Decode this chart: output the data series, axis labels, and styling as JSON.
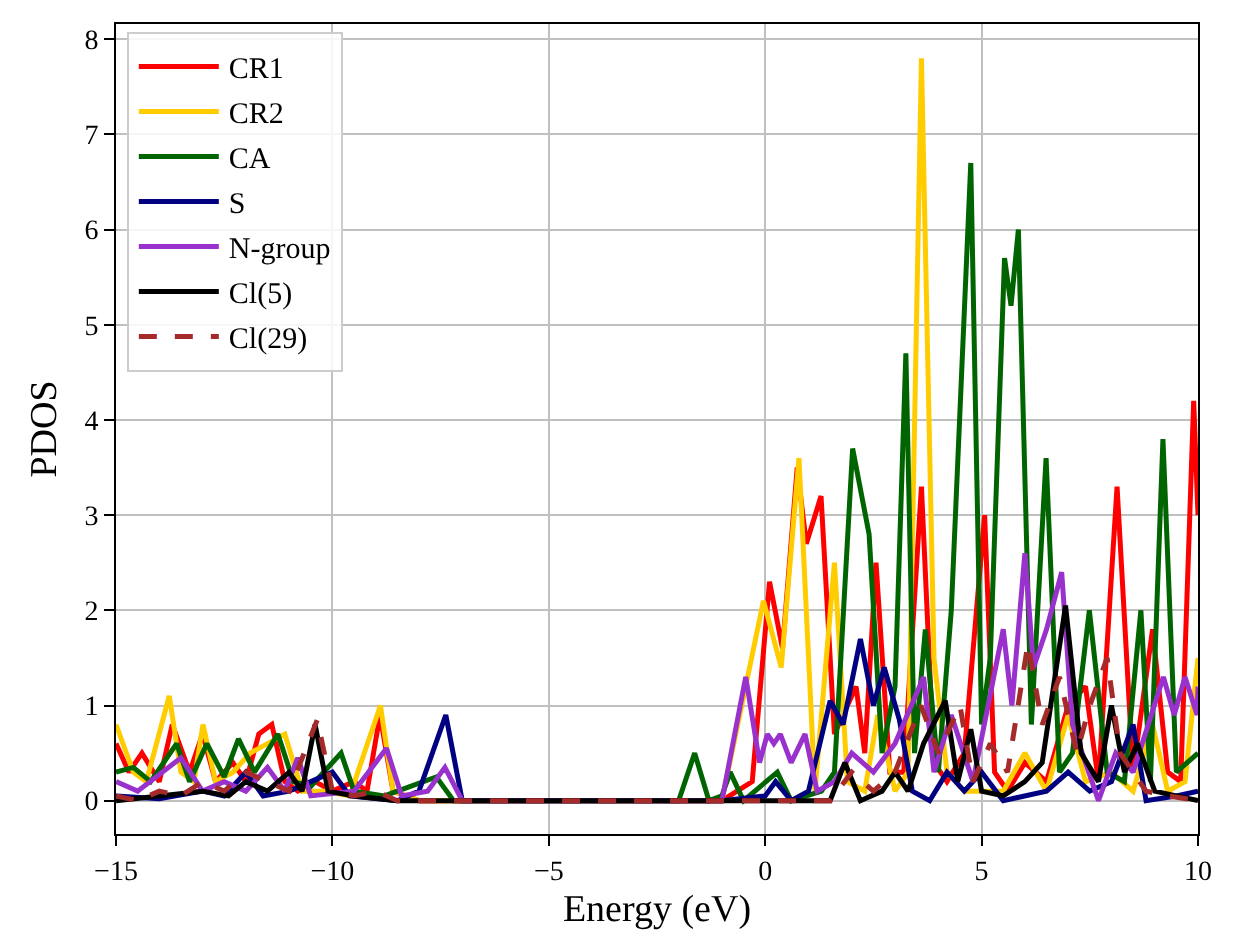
{
  "chart_data": {
    "type": "line",
    "xlabel": "Energy (eV)",
    "ylabel": "PDOS",
    "xlim": [
      -15,
      10
    ],
    "xticks": [
      {
        "value": -15,
        "label": "−15"
      },
      {
        "value": -10,
        "label": "−10"
      },
      {
        "value": -5,
        "label": "−5"
      },
      0,
      5,
      10
    ],
    "ylim": [
      -0.35,
      8.16
    ],
    "yticks": [
      0,
      1,
      2,
      3,
      4,
      5,
      6,
      7,
      8
    ],
    "grid": true,
    "legend": "top left",
    "marker": "none",
    "series": [
      {
        "name": "CR1",
        "color": "#ff0000",
        "x": [
          -15,
          -14.7,
          -14.4,
          -14,
          -13.7,
          -13.3,
          -13,
          -12.7,
          -12.3,
          -12,
          -11.7,
          -11.4,
          -11.1,
          -10.8,
          -10.4,
          -10,
          -9.5,
          -9.2,
          -8.9,
          -8.6,
          -8,
          -1,
          -0.3,
          0.1,
          0.4,
          0.74,
          0.95,
          1.29,
          1.6,
          2.1,
          2.3,
          2.56,
          2.88,
          3.2,
          3.61,
          3.9,
          4.2,
          4.6,
          5.07,
          5.3,
          5.6,
          6,
          6.5,
          7,
          7.4,
          7.7,
          8.13,
          8.5,
          8.95,
          9.3,
          9.6,
          9.9,
          10
        ],
        "values": [
          0.6,
          0.3,
          0.5,
          0.2,
          0.8,
          0.3,
          0.7,
          0.2,
          0.4,
          0.2,
          0.7,
          0.8,
          0.2,
          0.1,
          0.2,
          0.1,
          0.2,
          0.1,
          0.9,
          0.1,
          0,
          0,
          0.2,
          2.3,
          1.6,
          3.5,
          2.7,
          3.2,
          0.7,
          1.2,
          0.5,
          2.5,
          0.3,
          0.3,
          3.3,
          0.4,
          0.2,
          0.5,
          3.0,
          0.3,
          0.1,
          0.4,
          0.2,
          1.0,
          1.2,
          0.2,
          3.3,
          0.3,
          1.8,
          0.3,
          0.2,
          4.2,
          3.0
        ]
      },
      {
        "name": "CR2",
        "color": "#ffcc00",
        "x": [
          -15,
          -14.6,
          -14.3,
          -13.77,
          -13.5,
          -13.2,
          -12.99,
          -12.7,
          -12.3,
          -11.9,
          -11.5,
          -11.1,
          -10.7,
          -10.2,
          -9.6,
          -8.89,
          -8.6,
          -8,
          -1,
          -0.04,
          0.37,
          0.78,
          1.15,
          1.6,
          1.9,
          2.3,
          2.6,
          3,
          3.3,
          3.61,
          3.9,
          4.2,
          4.6,
          5.5,
          6,
          6.5,
          7,
          7.4,
          8,
          8.5,
          8.95,
          9.3,
          9.7,
          10
        ],
        "values": [
          0.8,
          0.3,
          0.2,
          1.1,
          0.3,
          0.2,
          0.8,
          0.2,
          0.3,
          0.5,
          0.6,
          0.7,
          0.1,
          0.1,
          0.05,
          1.0,
          0.1,
          0,
          0,
          2.1,
          1.4,
          3.6,
          0.1,
          2.5,
          0.2,
          0.1,
          0.9,
          0.1,
          0.3,
          7.8,
          1.5,
          0.3,
          0.1,
          0.1,
          0.5,
          0.1,
          0.9,
          0.2,
          0.3,
          0.1,
          0.8,
          0.1,
          0.2,
          1.5
        ]
      },
      {
        "name": "CA",
        "color": "#006400",
        "x": [
          -15,
          -14.6,
          -14.2,
          -13.6,
          -13.3,
          -12.9,
          -12.5,
          -12.17,
          -11.8,
          -11.26,
          -10.9,
          -10.5,
          -9.8,
          -9.5,
          -8.8,
          -7.6,
          -7.2,
          -2,
          -1.63,
          -1.3,
          -1,
          -0.81,
          -0.5,
          0.28,
          0.6,
          1.3,
          1.6,
          2.02,
          2.4,
          2.7,
          3,
          3.25,
          3.45,
          3.7,
          4,
          4.3,
          4.75,
          5,
          5.2,
          5.53,
          5.68,
          5.85,
          6.15,
          6.49,
          6.8,
          7.1,
          7.49,
          7.9,
          8.3,
          8.68,
          8.9,
          9.19,
          9.5,
          10
        ],
        "values": [
          0.3,
          0.35,
          0.2,
          0.6,
          0.2,
          0.6,
          0.25,
          0.65,
          0.3,
          0.7,
          0.2,
          0.15,
          0.5,
          0.1,
          0.05,
          0.25,
          0,
          0,
          0.5,
          0,
          0.05,
          0.3,
          0,
          0.3,
          0,
          0.1,
          0.3,
          3.7,
          2.8,
          0.5,
          1.2,
          4.7,
          0.5,
          1.8,
          0.3,
          2.0,
          6.7,
          0.8,
          1.5,
          5.7,
          5.2,
          6.0,
          0.8,
          3.6,
          0.3,
          0.5,
          2.0,
          0.3,
          0.2,
          2.0,
          0.2,
          3.8,
          0.3,
          0.5
        ]
      },
      {
        "name": "S",
        "color": "#000080",
        "x": [
          -15,
          -14,
          -13,
          -12.5,
          -12,
          -11.6,
          -11,
          -10,
          -9.6,
          -8.5,
          -8,
          -7.38,
          -7,
          -1,
          0,
          0.24,
          0.6,
          1,
          1.5,
          1.8,
          2.2,
          2.5,
          2.75,
          3.1,
          3.4,
          3.8,
          4.2,
          4.6,
          5,
          5.5,
          6.5,
          7,
          7.5,
          8,
          8.5,
          8.8,
          9.5,
          10
        ],
        "values": [
          0.05,
          0.02,
          0.1,
          0.05,
          0.3,
          0.05,
          0.1,
          0.3,
          0.05,
          0,
          0.1,
          0.9,
          0,
          0,
          0.05,
          0.2,
          0,
          0.1,
          1.05,
          0.8,
          1.7,
          1.0,
          1.4,
          0.85,
          0.1,
          0,
          0.3,
          0.1,
          0.3,
          0,
          0.1,
          0.3,
          0.1,
          0.2,
          0.8,
          0,
          0.05,
          0.1
        ]
      },
      {
        "name": "N-group",
        "color": "#9932cc",
        "x": [
          -15,
          -14.5,
          -13.5,
          -13,
          -12.5,
          -12,
          -11.5,
          -11.1,
          -10.8,
          -10.5,
          -9.5,
          -8.75,
          -8.4,
          -7.8,
          -7.4,
          -7,
          -1,
          -0.45,
          -0.13,
          0.05,
          0.2,
          0.35,
          0.6,
          0.92,
          1.2,
          1.6,
          2,
          2.5,
          3,
          3.66,
          3.9,
          4.3,
          4.8,
          5.5,
          5.7,
          6,
          6.2,
          6.5,
          6.85,
          7.1,
          7.7,
          8.1,
          8.5,
          9.2,
          9.45,
          9.7,
          9.98,
          10
        ],
        "values": [
          0.2,
          0.1,
          0.45,
          0.1,
          0.2,
          0.1,
          0.35,
          0.1,
          0.45,
          0.05,
          0.1,
          0.55,
          0.05,
          0.1,
          0.35,
          0,
          0,
          1.3,
          0.4,
          0.7,
          0.6,
          0.7,
          0.4,
          0.7,
          0.1,
          0.2,
          0.5,
          0.3,
          0.6,
          1.3,
          0.3,
          0.9,
          0.2,
          1.8,
          1.0,
          2.6,
          1.4,
          1.8,
          2.4,
          0.8,
          0,
          0.5,
          0.3,
          1.3,
          0.9,
          1.3,
          0.9,
          1.2
        ]
      },
      {
        "name": "Cl(5)",
        "color": "#000000",
        "x": [
          -15,
          -14,
          -13,
          -12.4,
          -12,
          -11.5,
          -11,
          -10.7,
          -10.4,
          -10.1,
          -9.5,
          -8.5,
          -2,
          0,
          1.5,
          1.84,
          2.2,
          2.7,
          3,
          3.3,
          3.66,
          4.16,
          4.45,
          4.75,
          5,
          5.5,
          6,
          6.4,
          6.94,
          7.3,
          7.7,
          8,
          8.3,
          8.6,
          9,
          9.5,
          10
        ],
        "values": [
          0,
          0.05,
          0.1,
          0.05,
          0.2,
          0.1,
          0.3,
          0.1,
          0.8,
          0.1,
          0.05,
          0,
          0,
          0,
          0,
          0.4,
          0,
          0.1,
          0.3,
          0.1,
          0.6,
          1.05,
          0.2,
          0.75,
          0.1,
          0.05,
          0.2,
          0.4,
          2.05,
          0.5,
          0.2,
          1.0,
          0.3,
          0.6,
          0.1,
          0.05,
          0
        ]
      },
      {
        "name": "Cl(29)",
        "color": "#a52a2a",
        "line_style": "dashed",
        "x": [
          -15,
          -14.5,
          -14,
          -13.5,
          -13,
          -12.5,
          -12,
          -11.5,
          -11,
          -10.35,
          -10,
          -9.5,
          -9,
          -8.5,
          -2,
          0,
          1.5,
          2,
          2.5,
          3,
          3.6,
          4,
          4.5,
          4.8,
          5.2,
          5.6,
          6.07,
          6.4,
          6.8,
          7.2,
          7.5,
          7.9,
          8.2,
          8.5,
          8.8,
          9.3,
          10
        ],
        "values": [
          0.05,
          0,
          0.1,
          0.05,
          0.2,
          0.1,
          0.3,
          0.2,
          0.1,
          0.85,
          0.1,
          0.05,
          0.1,
          0,
          0,
          0,
          0,
          0.3,
          0.1,
          0.3,
          1.0,
          0.5,
          1.0,
          0.2,
          0.6,
          0.3,
          1.65,
          0.8,
          1.3,
          0.5,
          1.0,
          1.5,
          0.5,
          0.3,
          0.1,
          0.05,
          0
        ]
      }
    ]
  }
}
